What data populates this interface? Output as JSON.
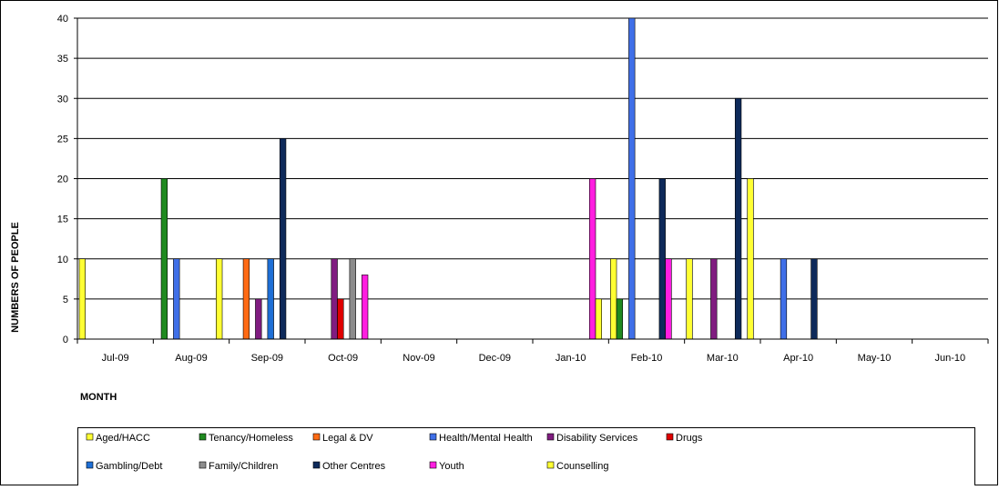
{
  "chart_data": {
    "type": "bar",
    "xlabel": "MONTH",
    "ylabel": "NUMBERS OF PEOPLE",
    "ylim": [
      0,
      40
    ],
    "yticks": [
      0,
      5,
      10,
      15,
      20,
      25,
      30,
      35,
      40
    ],
    "grid": true,
    "legend_position": "bottom",
    "categories": [
      "Jul-09",
      "Aug-09",
      "Sep-09",
      "Oct-09",
      "Nov-09",
      "Dec-09",
      "Jan-10",
      "Feb-10",
      "Mar-10",
      "Apr-10",
      "May-10",
      "Jun-10"
    ],
    "series": [
      {
        "name": "Aged/HACC",
        "color": "#ffff33",
        "values": [
          10,
          0,
          0,
          0,
          0,
          0,
          0,
          10,
          10,
          0,
          0,
          0
        ]
      },
      {
        "name": "Tenancy/Homeless",
        "color": "#1f8a1f",
        "values": [
          0,
          20,
          0,
          0,
          0,
          0,
          0,
          5,
          0,
          0,
          0,
          0
        ]
      },
      {
        "name": "Legal & DV",
        "color": "#ff6a13",
        "values": [
          0,
          0,
          10,
          0,
          0,
          0,
          0,
          0,
          0,
          0,
          0,
          0
        ]
      },
      {
        "name": "Health/Mental Health",
        "color": "#3f6fe8",
        "values": [
          0,
          10,
          0,
          0,
          0,
          0,
          0,
          40,
          0,
          10,
          0,
          0
        ]
      },
      {
        "name": "Disability Services",
        "color": "#801c80",
        "values": [
          0,
          0,
          5,
          10,
          0,
          0,
          0,
          0,
          10,
          0,
          0,
          0
        ]
      },
      {
        "name": "Drugs",
        "color": "#e00000",
        "values": [
          0,
          0,
          0,
          5,
          0,
          0,
          0,
          0,
          0,
          0,
          0,
          0
        ]
      },
      {
        "name": "Gambling/Debt",
        "color": "#1e6fd6",
        "values": [
          0,
          0,
          10,
          0,
          0,
          0,
          0,
          0,
          0,
          0,
          0,
          0
        ]
      },
      {
        "name": "Family/Children",
        "color": "#8c8c8c",
        "values": [
          0,
          0,
          0,
          10,
          0,
          0,
          0,
          0,
          0,
          0,
          0,
          0
        ]
      },
      {
        "name": "Other Centres",
        "color": "#0e2a5a",
        "values": [
          0,
          0,
          25,
          0,
          0,
          0,
          0,
          20,
          30,
          10,
          0,
          0
        ]
      },
      {
        "name": "Youth",
        "color": "#ff1ee0",
        "values": [
          0,
          0,
          0,
          8,
          0,
          0,
          20,
          10,
          0,
          0,
          0,
          0
        ]
      },
      {
        "name": "Counselling",
        "color": "#ffff33",
        "values": [
          0,
          10,
          0,
          0,
          0,
          0,
          5,
          0,
          20,
          0,
          0,
          0
        ]
      }
    ]
  }
}
